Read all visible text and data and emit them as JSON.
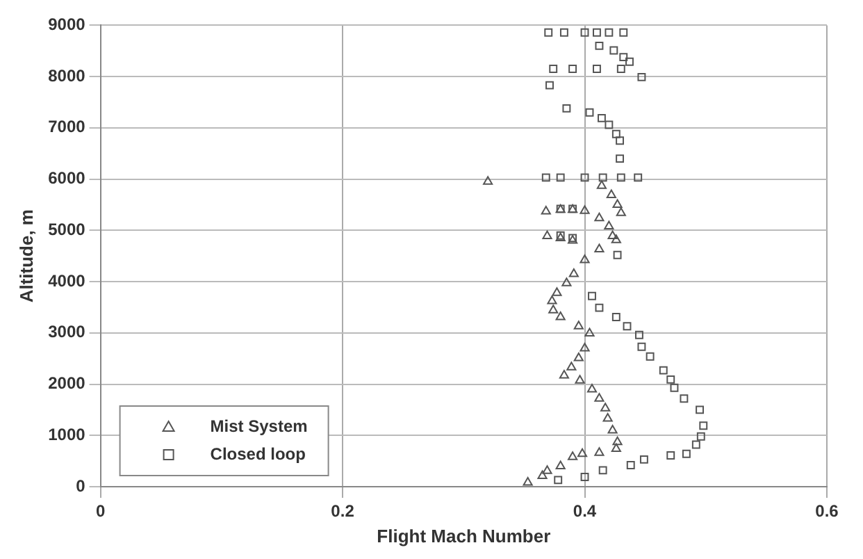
{
  "chart_data": {
    "type": "scatter",
    "xlabel": "Flight Mach Number",
    "ylabel": "Altitude, m",
    "xlim": [
      0,
      0.6
    ],
    "xticks": [
      0,
      0.2,
      0.4,
      0.6
    ],
    "ylim": [
      0,
      9000
    ],
    "yticks": [
      0,
      1000,
      2000,
      3000,
      4000,
      5000,
      6000,
      7000,
      8000,
      9000
    ],
    "grid": true,
    "legend": "bottom left",
    "series": [
      {
        "name": "Mist System",
        "color": "#555555",
        "marker": "triangle",
        "x": [
          0.353,
          0.365,
          0.369,
          0.38,
          0.39,
          0.398,
          0.412,
          0.426,
          0.427,
          0.423,
          0.419,
          0.417,
          0.412,
          0.406,
          0.396,
          0.383,
          0.389,
          0.395,
          0.4,
          0.404,
          0.395,
          0.38,
          0.374,
          0.373,
          0.377,
          0.385,
          0.391,
          0.4,
          0.412,
          0.426,
          0.423,
          0.369,
          0.38,
          0.39,
          0.42,
          0.412,
          0.368,
          0.38,
          0.39,
          0.4,
          0.43,
          0.427,
          0.422,
          0.414,
          0.32
        ],
        "values": [
          80,
          210,
          310,
          400,
          580,
          640,
          660,
          740,
          870,
          1100,
          1330,
          1530,
          1720,
          1900,
          2070,
          2170,
          2330,
          2510,
          2700,
          2990,
          3130,
          3310,
          3440,
          3620,
          3780,
          3970,
          4150,
          4420,
          4630,
          4810,
          4890,
          4890,
          4850,
          4800,
          5080,
          5240,
          5370,
          5400,
          5400,
          5380,
          5340,
          5500,
          5690,
          5870,
          5950
        ]
      },
      {
        "name": "Closed loop",
        "color": "#555555",
        "marker": "square",
        "x": [
          0.378,
          0.4,
          0.415,
          0.438,
          0.449,
          0.471,
          0.484,
          0.492,
          0.496,
          0.498,
          0.495,
          0.482,
          0.474,
          0.471,
          0.465,
          0.454,
          0.447,
          0.445,
          0.435,
          0.426,
          0.412,
          0.406,
          0.427,
          0.38,
          0.39,
          0.38,
          0.39,
          0.368,
          0.38,
          0.4,
          0.415,
          0.43,
          0.444,
          0.429,
          0.429,
          0.426,
          0.42,
          0.414,
          0.404,
          0.385,
          0.371,
          0.374,
          0.39,
          0.41,
          0.43,
          0.447,
          0.437,
          0.432,
          0.424,
          0.412,
          0.37,
          0.383,
          0.4,
          0.41,
          0.42,
          0.432
        ],
        "values": [
          130,
          190,
          320,
          420,
          530,
          610,
          640,
          820,
          980,
          1190,
          1500,
          1720,
          1930,
          2090,
          2270,
          2540,
          2730,
          2960,
          3130,
          3310,
          3490,
          3720,
          4520,
          4900,
          4850,
          5420,
          5420,
          6030,
          6030,
          6030,
          6030,
          6030,
          6030,
          6400,
          6750,
          6880,
          7060,
          7190,
          7300,
          7380,
          7830,
          8150,
          8150,
          8150,
          8150,
          7990,
          8290,
          8380,
          8510,
          8600,
          8860,
          8860,
          8860,
          8860,
          8860,
          8860
        ]
      }
    ]
  }
}
